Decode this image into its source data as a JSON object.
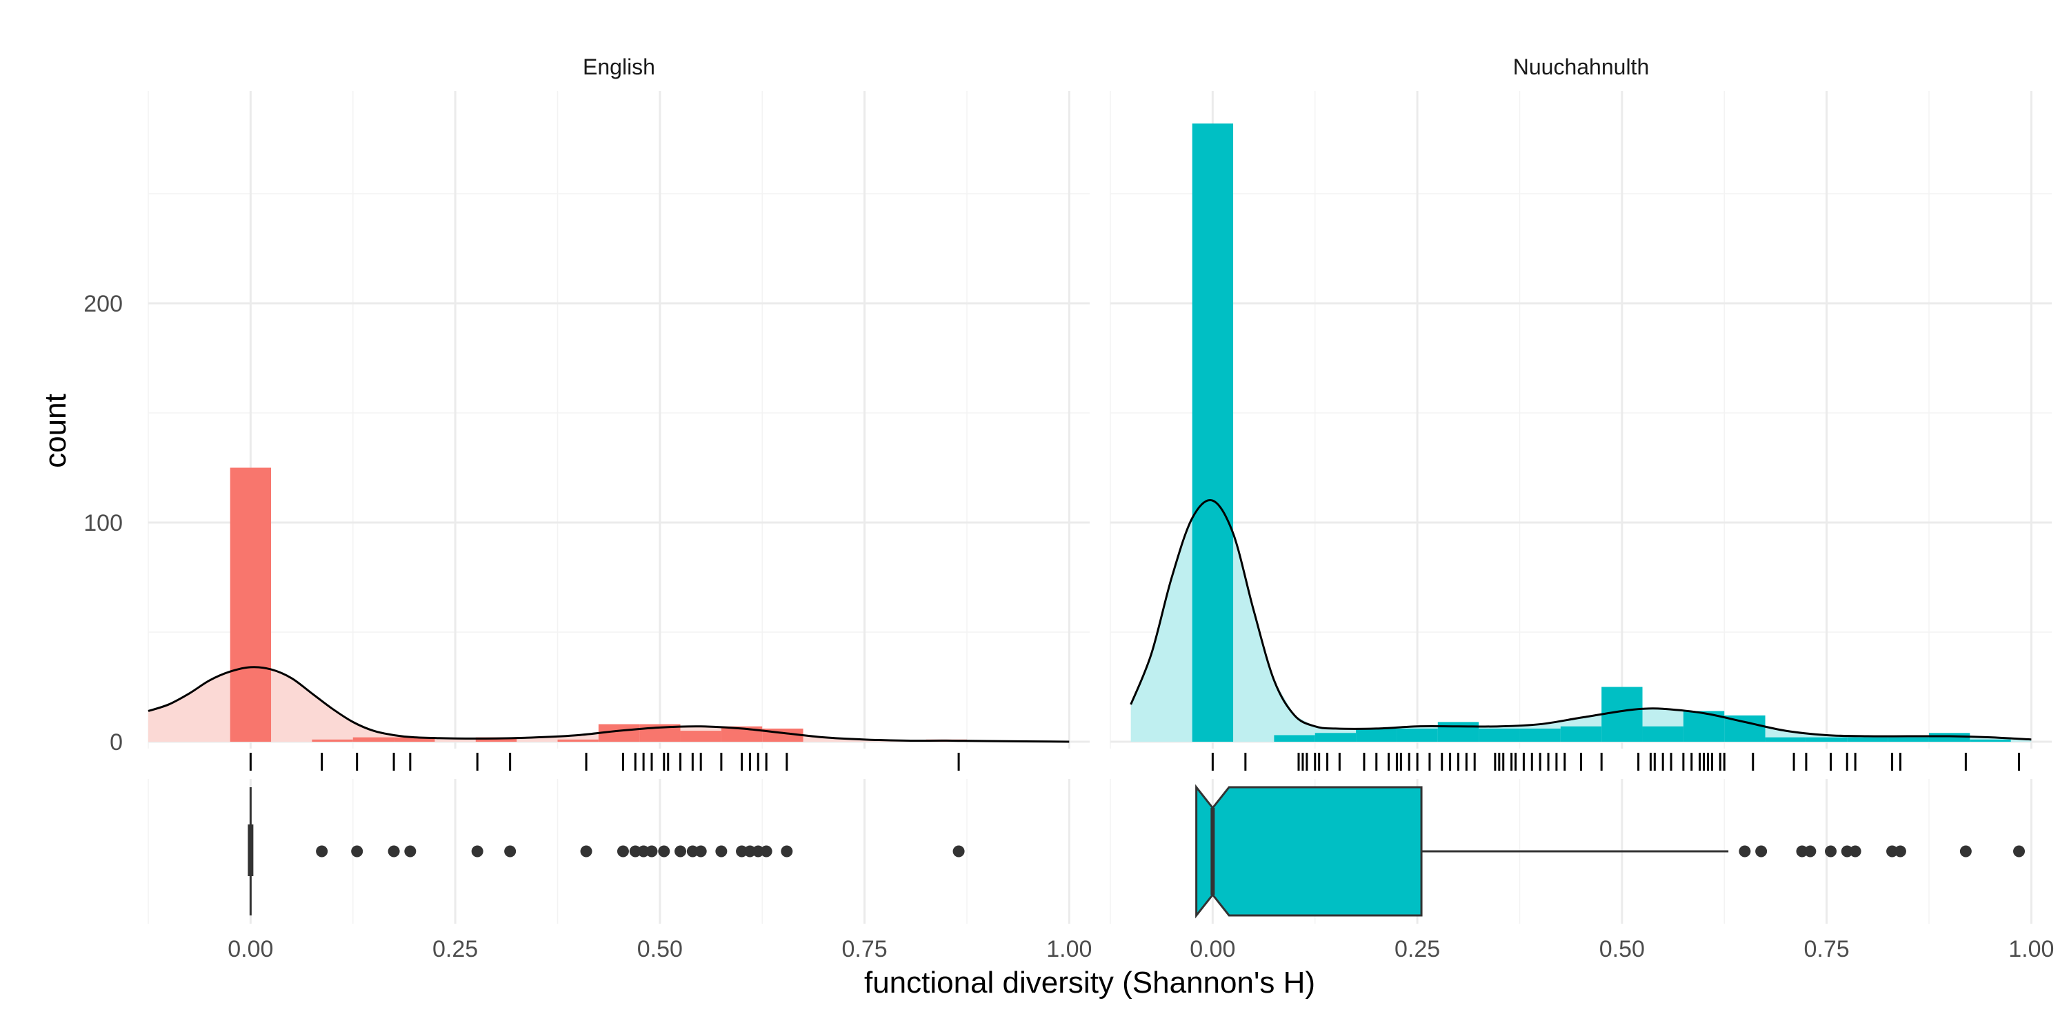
{
  "chart_data": {
    "type": "histogram",
    "xlabel": "functional diversity (Shannon's H)",
    "ylabel": "count",
    "xlim": [
      -0.125,
      1.025
    ],
    "ylim": [
      0,
      280
    ],
    "x_ticks": [
      "0.00",
      "0.25",
      "0.50",
      "0.75",
      "1.00"
    ],
    "x_tick_values": [
      0,
      0.25,
      0.5,
      0.75,
      1.0
    ],
    "y_ticks": [
      "0",
      "100",
      "200"
    ],
    "y_tick_values": [
      0,
      100,
      200
    ],
    "grid": true,
    "legend": "none",
    "panels": [
      {
        "name": "English",
        "color": "#F8766D",
        "fill_light": "#FBD9D5",
        "bin_width": 0.05,
        "bins": [
          {
            "x0": -0.025,
            "x1": 0.025,
            "count": 125
          },
          {
            "x0": 0.075,
            "x1": 0.125,
            "count": 1
          },
          {
            "x0": 0.125,
            "x1": 0.175,
            "count": 2
          },
          {
            "x0": 0.175,
            "x1": 0.225,
            "count": 2
          },
          {
            "x0": 0.275,
            "x1": 0.325,
            "count": 2
          },
          {
            "x0": 0.375,
            "x1": 0.425,
            "count": 1
          },
          {
            "x0": 0.425,
            "x1": 0.475,
            "count": 8
          },
          {
            "x0": 0.475,
            "x1": 0.525,
            "count": 8
          },
          {
            "x0": 0.525,
            "x1": 0.575,
            "count": 5
          },
          {
            "x0": 0.575,
            "x1": 0.625,
            "count": 7
          },
          {
            "x0": 0.625,
            "x1": 0.675,
            "count": 6
          },
          {
            "x0": 0.825,
            "x1": 0.875,
            "count": 1
          }
        ],
        "density": [
          [
            -0.125,
            14
          ],
          [
            -0.1,
            17
          ],
          [
            -0.075,
            22
          ],
          [
            -0.05,
            28
          ],
          [
            -0.025,
            32
          ],
          [
            0,
            34
          ],
          [
            0.025,
            33
          ],
          [
            0.05,
            29
          ],
          [
            0.075,
            22
          ],
          [
            0.1,
            15
          ],
          [
            0.125,
            9
          ],
          [
            0.15,
            5
          ],
          [
            0.175,
            3
          ],
          [
            0.2,
            2
          ],
          [
            0.25,
            1.5
          ],
          [
            0.3,
            1.5
          ],
          [
            0.35,
            2
          ],
          [
            0.4,
            3
          ],
          [
            0.45,
            5
          ],
          [
            0.5,
            6.5
          ],
          [
            0.55,
            7
          ],
          [
            0.6,
            6
          ],
          [
            0.65,
            4
          ],
          [
            0.7,
            2
          ],
          [
            0.75,
            1
          ],
          [
            0.8,
            0.5
          ],
          [
            0.85,
            0.5
          ],
          [
            0.9,
            0.3
          ],
          [
            1.0,
            0
          ]
        ],
        "rug": [
          0,
          0.087,
          0.13,
          0.175,
          0.195,
          0.277,
          0.317,
          0.41,
          0.455,
          0.47,
          0.48,
          0.49,
          0.505,
          0.51,
          0.525,
          0.54,
          0.55,
          0.575,
          0.6,
          0.61,
          0.62,
          0.63,
          0.655,
          0.865
        ],
        "boxplot": {
          "q1": 0,
          "median": 0,
          "q3": 0,
          "whisker_low": 0,
          "whisker_high": 0,
          "notch_half": 0,
          "outliers": [
            0.087,
            0.13,
            0.175,
            0.195,
            0.277,
            0.317,
            0.41,
            0.455,
            0.47,
            0.48,
            0.49,
            0.505,
            0.525,
            0.54,
            0.55,
            0.575,
            0.6,
            0.61,
            0.62,
            0.63,
            0.655,
            0.865
          ]
        }
      },
      {
        "name": "Nuuchahnulth",
        "color": "#00BFC4",
        "fill_light": "#BFEFF0",
        "bin_width": 0.05,
        "bins": [
          {
            "x0": -0.025,
            "x1": 0.025,
            "count": 282
          },
          {
            "x0": 0.075,
            "x1": 0.125,
            "count": 3
          },
          {
            "x0": 0.125,
            "x1": 0.175,
            "count": 4
          },
          {
            "x0": 0.175,
            "x1": 0.225,
            "count": 6
          },
          {
            "x0": 0.225,
            "x1": 0.275,
            "count": 6
          },
          {
            "x0": 0.275,
            "x1": 0.325,
            "count": 9
          },
          {
            "x0": 0.325,
            "x1": 0.375,
            "count": 6
          },
          {
            "x0": 0.375,
            "x1": 0.425,
            "count": 6
          },
          {
            "x0": 0.425,
            "x1": 0.475,
            "count": 7
          },
          {
            "x0": 0.475,
            "x1": 0.525,
            "count": 25
          },
          {
            "x0": 0.525,
            "x1": 0.575,
            "count": 7
          },
          {
            "x0": 0.575,
            "x1": 0.625,
            "count": 14
          },
          {
            "x0": 0.625,
            "x1": 0.675,
            "count": 12
          },
          {
            "x0": 0.675,
            "x1": 0.725,
            "count": 2
          },
          {
            "x0": 0.725,
            "x1": 0.775,
            "count": 2
          },
          {
            "x0": 0.775,
            "x1": 0.825,
            "count": 2
          },
          {
            "x0": 0.825,
            "x1": 0.875,
            "count": 2
          },
          {
            "x0": 0.875,
            "x1": 0.925,
            "count": 4
          },
          {
            "x0": 0.925,
            "x1": 0.975,
            "count": 1
          }
        ],
        "density": [
          [
            -0.1,
            17
          ],
          [
            -0.075,
            40
          ],
          [
            -0.05,
            75
          ],
          [
            -0.025,
            102
          ],
          [
            0,
            110
          ],
          [
            0.025,
            95
          ],
          [
            0.05,
            60
          ],
          [
            0.075,
            28
          ],
          [
            0.1,
            12
          ],
          [
            0.125,
            7
          ],
          [
            0.15,
            6
          ],
          [
            0.2,
            6
          ],
          [
            0.25,
            7
          ],
          [
            0.3,
            7
          ],
          [
            0.35,
            7
          ],
          [
            0.4,
            8
          ],
          [
            0.45,
            11
          ],
          [
            0.5,
            14
          ],
          [
            0.525,
            15
          ],
          [
            0.55,
            15
          ],
          [
            0.6,
            13
          ],
          [
            0.65,
            9
          ],
          [
            0.7,
            5
          ],
          [
            0.75,
            3
          ],
          [
            0.8,
            2.5
          ],
          [
            0.85,
            2.5
          ],
          [
            0.9,
            2.5
          ],
          [
            0.95,
            2
          ],
          [
            1.0,
            1
          ]
        ],
        "rug": [
          0,
          0.04,
          0.105,
          0.11,
          0.115,
          0.125,
          0.13,
          0.14,
          0.155,
          0.185,
          0.2,
          0.215,
          0.225,
          0.23,
          0.24,
          0.25,
          0.265,
          0.28,
          0.29,
          0.3,
          0.31,
          0.32,
          0.345,
          0.35,
          0.355,
          0.365,
          0.37,
          0.38,
          0.39,
          0.4,
          0.41,
          0.42,
          0.43,
          0.45,
          0.475,
          0.52,
          0.535,
          0.54,
          0.55,
          0.56,
          0.575,
          0.585,
          0.595,
          0.6,
          0.605,
          0.61,
          0.62,
          0.625,
          0.66,
          0.71,
          0.725,
          0.755,
          0.775,
          0.785,
          0.83,
          0.84,
          0.92,
          0.985
        ],
        "boxplot": {
          "q1": 0,
          "median": 0,
          "q3": 0.255,
          "whisker_low": 0,
          "whisker_high": 0.63,
          "notch_half": 0.02,
          "outliers": [
            0.65,
            0.67,
            0.72,
            0.73,
            0.755,
            0.775,
            0.785,
            0.83,
            0.84,
            0.92,
            0.985
          ]
        }
      }
    ]
  }
}
